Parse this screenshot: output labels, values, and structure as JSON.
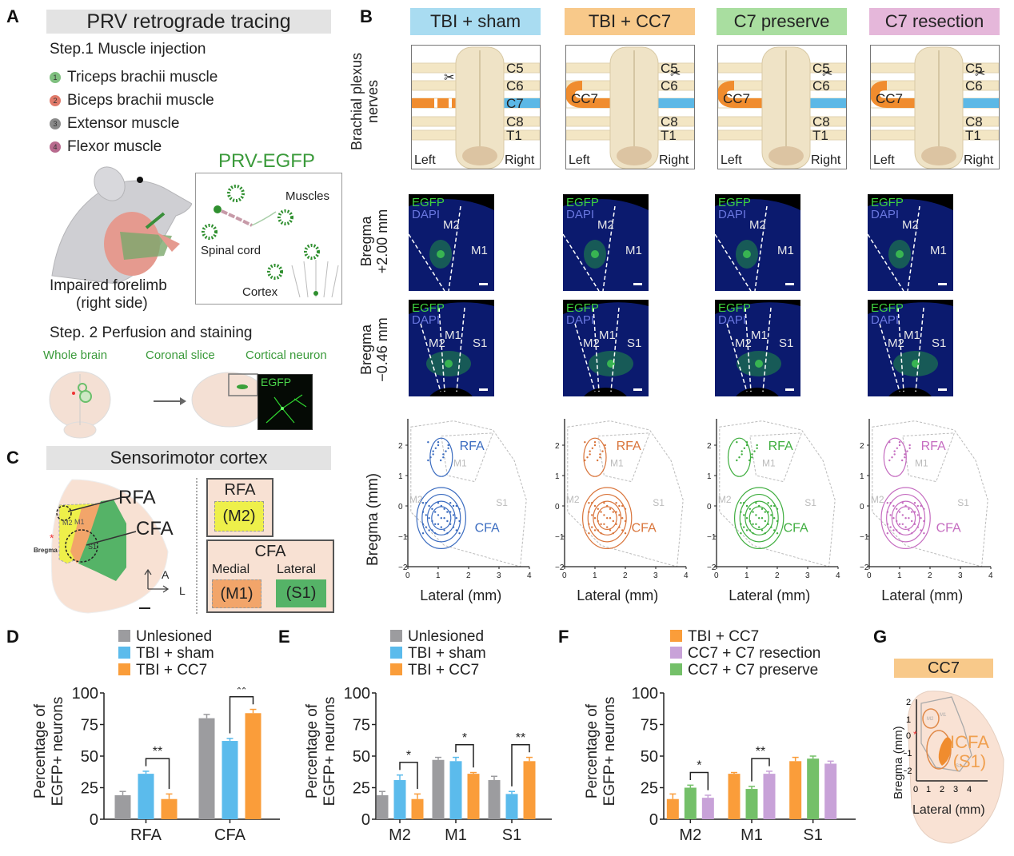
{
  "panelA": {
    "label": "A",
    "title": "PRV retrograde tracing",
    "step1": "Step.1 Muscle injection",
    "muscles": [
      {
        "num": "1",
        "name": "Triceps brachii muscle",
        "color": "#7fbf7f"
      },
      {
        "num": "2",
        "name": "Biceps brachii muscle",
        "color": "#e07a6a"
      },
      {
        "num": "3",
        "name": "Extensor muscle",
        "color": "#8a8a8a"
      },
      {
        "num": "4",
        "name": "Flexor muscle",
        "color": "#b86a8e"
      }
    ],
    "virus_title": "PRV-EGFP",
    "virus_box": {
      "muscles": "Muscles",
      "spinal": "Spinal cord",
      "cortex": "Cortex"
    },
    "limb_caption_1": "Impaired forelimb",
    "limb_caption_2": "(right side)",
    "step2": "Step. 2 Perfusion and staining",
    "stages": [
      "Whole brain",
      "Coronal slice",
      "Cortical neuron"
    ],
    "egfp": "EGFP"
  },
  "panelB": {
    "label": "B",
    "groups": [
      {
        "name": "TBI + sham",
        "color": "#a9dcf1"
      },
      {
        "name": "TBI + CC7",
        "color": "#f8c98a"
      },
      {
        "name": "C7 preserve",
        "color": "#a9dea0"
      },
      {
        "name": "C7 resection",
        "color": "#e5b7da"
      }
    ],
    "row_label_nerves_1": "Brachial plexus",
    "row_label_nerves_2": "nerves",
    "nerve_labels": [
      "C5",
      "C6",
      "C7",
      "C8",
      "T1"
    ],
    "cc7_label": "CC7",
    "left": "Left",
    "right": "Right",
    "row_label_b1_1": "Bregma",
    "row_label_b1_2": "+2.00 mm",
    "row_label_b2_1": "Bregma",
    "row_label_b2_2": "−0.46 mm",
    "stain_egfp": "EGFP",
    "stain_dapi": "DAPI",
    "region_m2": "M2",
    "region_m1": "M1",
    "region_s1": "S1",
    "map_ylabel": "Bregma (mm)",
    "map_xlabel": "Lateral (mm)",
    "map_xticks": [
      "0",
      "1",
      "2",
      "3",
      "4"
    ],
    "map_yticks": [
      "2",
      "1",
      "0",
      "−1",
      "−2"
    ],
    "map_colors": [
      "#3b6cc0",
      "#d9743a",
      "#3fae3f",
      "#c56cc0"
    ],
    "rfa": "RFA",
    "cfa": "CFA"
  },
  "panelC": {
    "label": "C",
    "title": "Sensorimotor cortex",
    "rfa": "RFA",
    "cfa": "CFA",
    "m2": "M2",
    "m1": "M1",
    "s1": "S1",
    "bregma": "Bregma",
    "axis_a": "A",
    "axis_l": "L",
    "box_rfa_title": "RFA",
    "box_rfa_sub": "(M2)",
    "box_cfa_title": "CFA",
    "medial": "Medial",
    "lateral": "Lateral",
    "box_m1": "(M1)",
    "box_s1": "(S1)"
  },
  "panelG": {
    "label": "G",
    "title": "CC7",
    "icfa_1": "ICFA",
    "icfa_2": "(S1)",
    "ylabel": "Bregma (mm)",
    "xlabel": "Lateral (mm)",
    "xticks": [
      "0",
      "1",
      "2",
      "3",
      "4"
    ],
    "yticks": [
      "2",
      "1",
      "0",
      "−1",
      "−2"
    ],
    "m2": "M2",
    "m1": "M1",
    "s1": "S1"
  },
  "chart_data": [
    {
      "id": "D",
      "label": "D",
      "type": "bar",
      "ylabel_1": "Percentage of",
      "ylabel_2": "EGFP+ neurons",
      "ylim": [
        0,
        100
      ],
      "yticks": [
        0,
        25,
        50,
        75,
        100
      ],
      "categories": [
        "RFA",
        "CFA"
      ],
      "series": [
        {
          "name": "Unlesioned",
          "color": "#9c9c9f",
          "values": [
            19,
            80
          ],
          "errors": [
            3,
            3
          ]
        },
        {
          "name": "TBI + sham",
          "color": "#5bbbec",
          "values": [
            36,
            62
          ],
          "errors": [
            2,
            2
          ]
        },
        {
          "name": "TBI + CC7",
          "color": "#fa9d3a",
          "values": [
            16,
            84
          ],
          "errors": [
            4,
            3
          ]
        }
      ],
      "significance": [
        {
          "category": 0,
          "from": 1,
          "to": 2,
          "text": "**"
        },
        {
          "category": 1,
          "from": 1,
          "to": 2,
          "text": "**"
        }
      ]
    },
    {
      "id": "E",
      "label": "E",
      "type": "bar",
      "ylabel_1": "Percentage of",
      "ylabel_2": "EGFP+ neurons",
      "ylim": [
        0,
        100
      ],
      "yticks": [
        0,
        25,
        50,
        75,
        100
      ],
      "categories": [
        "M2",
        "M1",
        "S1"
      ],
      "series": [
        {
          "name": "Unlesioned",
          "color": "#9c9c9f",
          "values": [
            19,
            47,
            31
          ],
          "errors": [
            3,
            2,
            3
          ]
        },
        {
          "name": "TBI + sham",
          "color": "#5bbbec",
          "values": [
            31,
            46,
            20
          ],
          "errors": [
            4,
            3,
            2
          ]
        },
        {
          "name": "TBI + CC7",
          "color": "#fa9d3a",
          "values": [
            16,
            36,
            46
          ],
          "errors": [
            4,
            1,
            3
          ]
        }
      ],
      "significance": [
        {
          "category": 0,
          "from": 1,
          "to": 2,
          "text": "*"
        },
        {
          "category": 1,
          "from": 1,
          "to": 2,
          "text": "*"
        },
        {
          "category": 2,
          "from": 1,
          "to": 2,
          "text": "**"
        }
      ]
    },
    {
      "id": "F",
      "label": "F",
      "type": "bar",
      "ylabel_1": "Percentage of",
      "ylabel_2": "EGFP+ neurons",
      "ylim": [
        0,
        100
      ],
      "yticks": [
        0,
        25,
        50,
        75,
        100
      ],
      "categories": [
        "M2",
        "M1",
        "S1"
      ],
      "legend_order": [
        "TBI + CC7",
        "CC7 + C7 resection",
        "CC7 + C7 preserve"
      ],
      "series": [
        {
          "name": "TBI + CC7",
          "color": "#fa9d3a",
          "values": [
            16,
            36,
            46
          ],
          "errors": [
            4,
            1,
            3
          ]
        },
        {
          "name": "CC7 + C7 preserve",
          "color": "#74c069",
          "values": [
            25,
            24,
            48
          ],
          "errors": [
            2,
            2,
            2
          ]
        },
        {
          "name": "CC7 + C7 resection",
          "color": "#c8a2d8",
          "values": [
            17,
            36,
            44
          ],
          "errors": [
            2,
            2,
            2
          ]
        }
      ],
      "significance": [
        {
          "category": 0,
          "from": 1,
          "to": 2,
          "text": "*"
        },
        {
          "category": 1,
          "from": 1,
          "to": 2,
          "text": "**"
        }
      ]
    }
  ]
}
